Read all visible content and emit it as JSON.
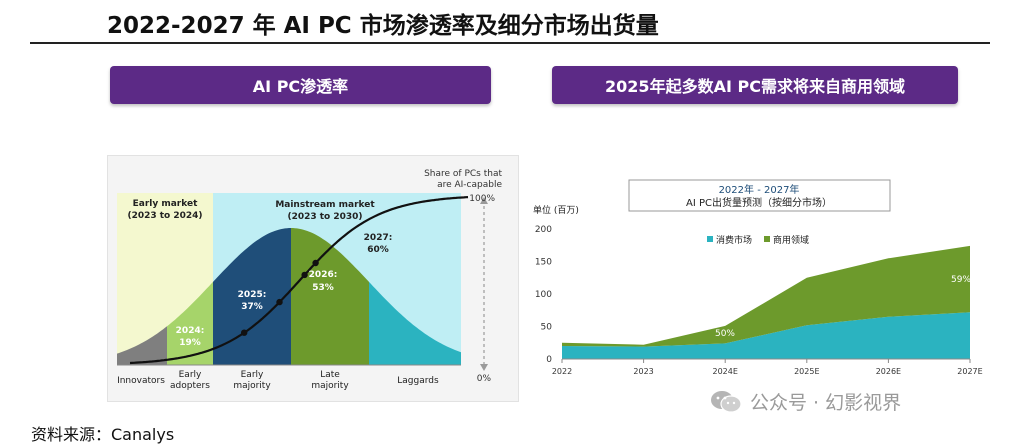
{
  "header": {
    "title": "2022-2027 年 AI PC 市场渗透率及细分市场出货量",
    "left_tab": "AI PC渗透率",
    "right_tab": "2025年起多数AI PC需求将来自商用领域"
  },
  "footer": {
    "source": "资料来源：Canalys",
    "watermark": "公众号 · 幻影视界"
  },
  "colors": {
    "purple": "#5c2a86",
    "teal": "#2bb3c0",
    "green": "#6d9a2c",
    "navy": "#1f4e79",
    "lightgreen": "#a6d46a",
    "lightcyan": "#bfeef4",
    "lightyellow": "#f4f8cf"
  },
  "chart_data": [
    {
      "type": "area",
      "title": "",
      "curve_labels": {
        "share_top": "Share of PCs that",
        "share_bottom": "are AI-capable",
        "pct_100": "100%",
        "pct_0": "0%"
      },
      "phases": {
        "early_market_1": "Early market",
        "early_market_2": "(2023 to 2024)",
        "mainstream_market_1": "Mainstream market",
        "mainstream_market_2": "(2023 to 2030)"
      },
      "segments": [
        {
          "line1": "Innovators",
          "line2": ""
        },
        {
          "line1": "Early",
          "line2": "adopters"
        },
        {
          "line1": "Early",
          "line2": "majority"
        },
        {
          "line1": "Late",
          "line2": "majority"
        },
        {
          "line1": "Laggards",
          "line2": ""
        }
      ],
      "points": [
        {
          "year": "2024:",
          "value": "19%",
          "share": 19
        },
        {
          "year": "2025:",
          "value": "37%",
          "share": 37
        },
        {
          "year": "2026:",
          "value": "53%",
          "share": 53
        },
        {
          "year": "2027:",
          "value": "60%",
          "share": 60
        }
      ]
    },
    {
      "type": "area",
      "title_line1": "2022年 - 2027年",
      "title_line2": "AI PC出货量预测（按细分市场）",
      "ylabel": "单位 (百万)",
      "ylim": [
        0,
        200
      ],
      "yticks": [
        "0",
        "50",
        "100",
        "150",
        "200"
      ],
      "categories": [
        "2022",
        "2023",
        "2024E",
        "2025E",
        "2026E",
        "2027E"
      ],
      "series": [
        {
          "name": "消费市场",
          "values": [
            20,
            19,
            24,
            52,
            65,
            72
          ]
        },
        {
          "name": "商用领域",
          "values": [
            5,
            3,
            27,
            73,
            90,
            102
          ]
        }
      ],
      "annotations": [
        "50%",
        "59%"
      ],
      "legend_position": "top-center"
    }
  ]
}
